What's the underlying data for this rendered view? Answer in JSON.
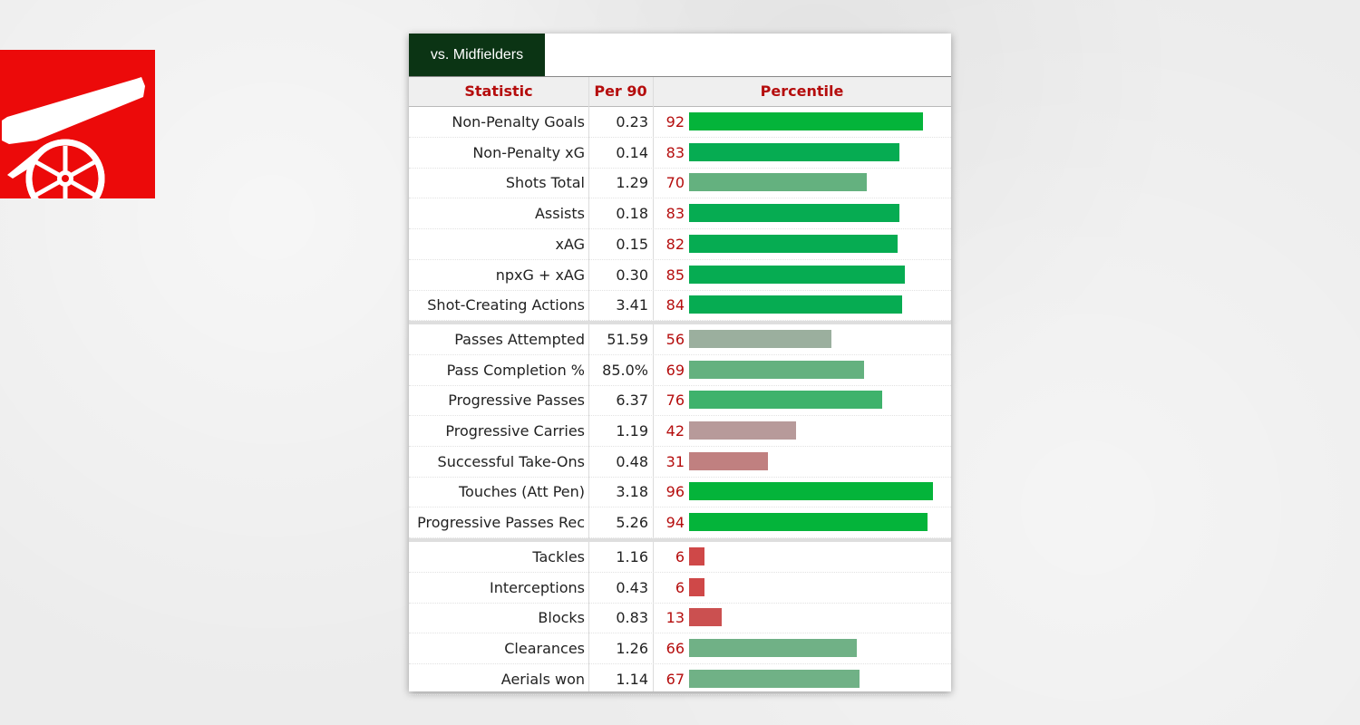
{
  "tab": {
    "label": "vs. Midfielders"
  },
  "headers": {
    "statistic": "Statistic",
    "per90": "Per 90",
    "percentile": "Percentile"
  },
  "groups": [
    {
      "rows": [
        {
          "stat": "Non-Penalty Goals",
          "per90": "0.23",
          "percentile": 92,
          "color": "#04b43a"
        },
        {
          "stat": "Non-Penalty xG",
          "per90": "0.14",
          "percentile": 83,
          "color": "#06ac52"
        },
        {
          "stat": "Shots Total",
          "per90": "1.29",
          "percentile": 70,
          "color": "#64b17f"
        },
        {
          "stat": "Assists",
          "per90": "0.18",
          "percentile": 83,
          "color": "#06ac52"
        },
        {
          "stat": "xAG",
          "per90": "0.15",
          "percentile": 82,
          "color": "#06ac52"
        },
        {
          "stat": "npxG + xAG",
          "per90": "0.30",
          "percentile": 85,
          "color": "#06ac52"
        },
        {
          "stat": "Shot-Creating Actions",
          "per90": "3.41",
          "percentile": 84,
          "color": "#06ac52"
        }
      ]
    },
    {
      "rows": [
        {
          "stat": "Passes Attempted",
          "per90": "51.59",
          "percentile": 56,
          "color": "#9baf9e"
        },
        {
          "stat": "Pass Completion %",
          "per90": "85.0%",
          "percentile": 69,
          "color": "#64b17f"
        },
        {
          "stat": "Progressive Passes",
          "per90": "6.37",
          "percentile": 76,
          "color": "#3fb26c"
        },
        {
          "stat": "Progressive Carries",
          "per90": "1.19",
          "percentile": 42,
          "color": "#b79a9a"
        },
        {
          "stat": "Successful Take-Ons",
          "per90": "0.48",
          "percentile": 31,
          "color": "#c08080"
        },
        {
          "stat": "Touches (Att Pen)",
          "per90": "3.18",
          "percentile": 96,
          "color": "#04b43a"
        },
        {
          "stat": "Progressive Passes Rec",
          "per90": "5.26",
          "percentile": 94,
          "color": "#04b43a"
        }
      ]
    },
    {
      "rows": [
        {
          "stat": "Tackles",
          "per90": "1.16",
          "percentile": 6,
          "color": "#cf4848"
        },
        {
          "stat": "Interceptions",
          "per90": "0.43",
          "percentile": 6,
          "color": "#cf4848"
        },
        {
          "stat": "Blocks",
          "per90": "0.83",
          "percentile": 13,
          "color": "#cb5050"
        },
        {
          "stat": "Clearances",
          "per90": "1.26",
          "percentile": 66,
          "color": "#70b186"
        },
        {
          "stat": "Aerials won",
          "per90": "1.14",
          "percentile": 67,
          "color": "#70b186"
        }
      ]
    }
  ],
  "icons": {
    "logo": "arsenal-cannon-icon"
  },
  "colors": {
    "brand_red": "#ec0a0a",
    "tab_bg": "#0b3414",
    "header_text": "#b50d0d"
  }
}
